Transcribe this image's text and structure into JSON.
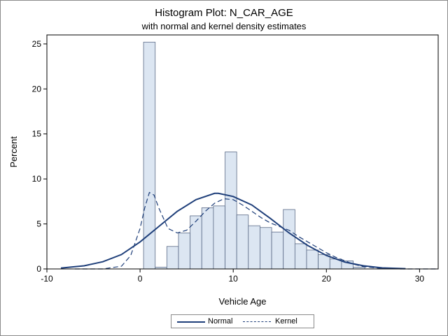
{
  "chart_data": {
    "type": "bar",
    "title": "Histogram Plot: N_CAR_AGE",
    "subtitle": "with normal and kernel density estimates",
    "xlabel": "Vehicle Age",
    "ylabel": "Percent",
    "xlim": [
      -10,
      32
    ],
    "ylim": [
      0,
      26
    ],
    "xticks": [
      -10,
      0,
      10,
      20,
      30
    ],
    "yticks": [
      0,
      5,
      10,
      15,
      20,
      25
    ],
    "bin_width": 1.25,
    "bins": [
      {
        "center": 1.0,
        "value": 25.2
      },
      {
        "center": 2.25,
        "value": 0.2
      },
      {
        "center": 3.5,
        "value": 2.5
      },
      {
        "center": 4.75,
        "value": 4.0
      },
      {
        "center": 6.0,
        "value": 5.9
      },
      {
        "center": 7.25,
        "value": 6.8
      },
      {
        "center": 8.5,
        "value": 7.0
      },
      {
        "center": 9.75,
        "value": 13.0
      },
      {
        "center": 11.0,
        "value": 6.0
      },
      {
        "center": 12.25,
        "value": 4.8
      },
      {
        "center": 13.5,
        "value": 4.6
      },
      {
        "center": 14.75,
        "value": 4.1
      },
      {
        "center": 16.0,
        "value": 6.6
      },
      {
        "center": 17.25,
        "value": 2.8
      },
      {
        "center": 18.5,
        "value": 2.1
      },
      {
        "center": 19.75,
        "value": 1.6
      },
      {
        "center": 21.0,
        "value": 1.1
      },
      {
        "center": 22.25,
        "value": 0.9
      },
      {
        "center": 23.5,
        "value": 0.2
      }
    ],
    "series": [
      {
        "name": "Normal",
        "style": "solid",
        "color": "#1f3f7a",
        "x": [
          -8.5,
          -6,
          -4,
          -2,
          0,
          2,
          4,
          6,
          8,
          8.4,
          10,
          12,
          14,
          16,
          18,
          20,
          22,
          24,
          26,
          28.5
        ],
        "y": [
          0.1,
          0.35,
          0.8,
          1.6,
          3.0,
          4.7,
          6.4,
          7.7,
          8.4,
          8.4,
          8.05,
          7.1,
          5.6,
          4.0,
          2.6,
          1.5,
          0.75,
          0.35,
          0.12,
          0.03
        ]
      },
      {
        "name": "Kernel",
        "style": "dashed",
        "color": "#1f3f7a",
        "x": [
          -7,
          -4,
          -2,
          -1,
          0,
          0.5,
          1,
          1.5,
          2,
          3,
          4,
          5,
          6,
          7,
          8,
          9,
          10,
          11,
          12,
          13,
          14,
          15,
          16,
          17,
          18,
          19,
          20,
          21,
          22,
          23,
          24,
          26,
          28,
          30,
          32
        ],
        "y": [
          0,
          0,
          0.3,
          1.5,
          4.5,
          6.8,
          8.5,
          8.2,
          6.8,
          4.5,
          4.0,
          4.3,
          5.3,
          6.4,
          7.3,
          7.8,
          7.7,
          7.1,
          6.4,
          5.7,
          5.1,
          4.7,
          4.3,
          3.6,
          3.0,
          2.4,
          1.8,
          1.3,
          0.9,
          0.5,
          0.25,
          0.05,
          0,
          0,
          0
        ]
      }
    ],
    "legend": [
      "Normal",
      "Kernel"
    ],
    "legend_position": "bottom",
    "bar_fill": "#dce6f2",
    "bar_stroke": "#5a6a86",
    "line_color": "#1f3f7a",
    "grid": false
  }
}
